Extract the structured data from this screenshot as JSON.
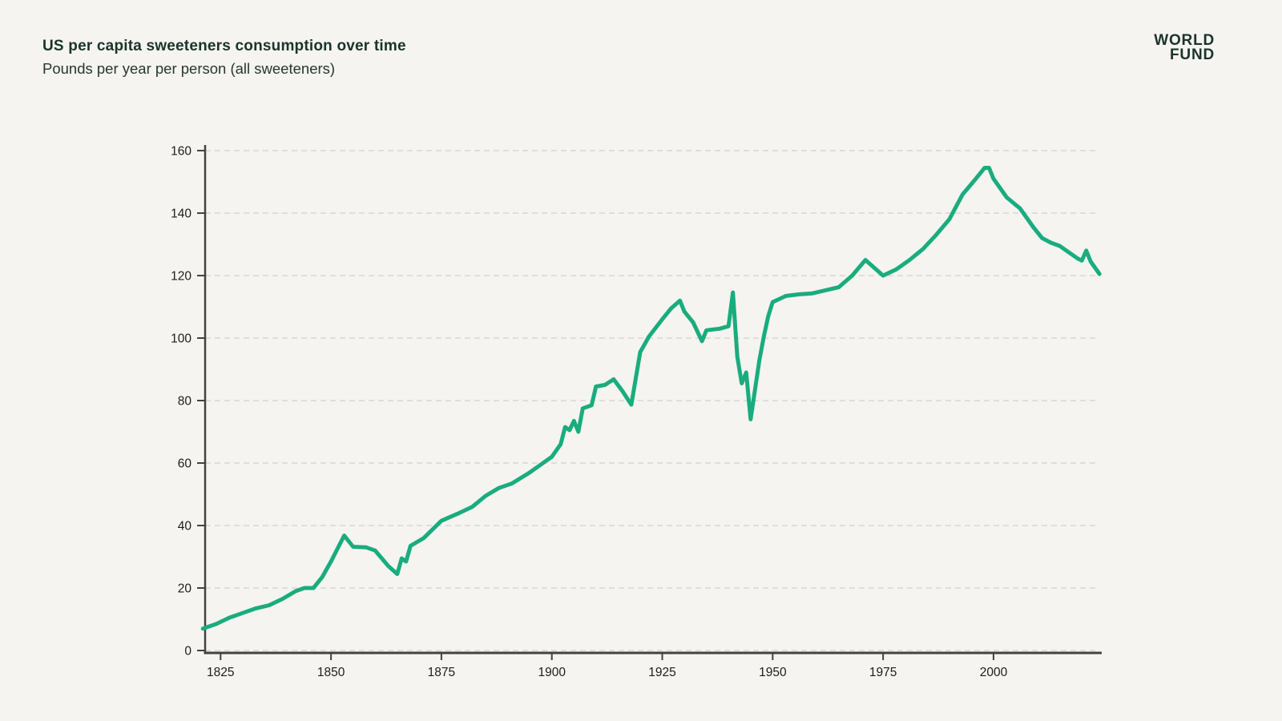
{
  "header": {
    "title": "US per capita sweeteners consumption over time",
    "subtitle": "Pounds per year per person (all sweeteners)"
  },
  "logo": {
    "line1": "WORLD",
    "line2": "FUND"
  },
  "colors": {
    "background": "#f5f4f0",
    "line": "#1aac7e",
    "axis": "#424242",
    "grid": "#d8d6d2",
    "tick_label": "#1c1c1c",
    "title_text": "#1b332c"
  },
  "chart_data": {
    "type": "line",
    "title": "US per capita sweeteners consumption over time",
    "subtitle": "Pounds per year per person (all sweeteners)",
    "xlabel": "",
    "ylabel": "",
    "xlim": [
      1821.5,
      2024.5
    ],
    "ylim": [
      0,
      160
    ],
    "x_ticks": [
      1825,
      1850,
      1875,
      1900,
      1925,
      1950,
      1975,
      2000
    ],
    "y_ticks": [
      0,
      20,
      40,
      60,
      80,
      100,
      120,
      140,
      160
    ],
    "grid": "horizontal-dashed",
    "legend": "none",
    "series": [
      {
        "name": "All sweeteners (lbs per person per year)",
        "points": [
          [
            1821,
            7
          ],
          [
            1824,
            8.5
          ],
          [
            1827,
            10.5
          ],
          [
            1830,
            12
          ],
          [
            1833,
            13.5
          ],
          [
            1836,
            14.5
          ],
          [
            1839,
            16.5
          ],
          [
            1842,
            19
          ],
          [
            1844,
            20
          ],
          [
            1846,
            20
          ],
          [
            1848,
            23.5
          ],
          [
            1850,
            28.5
          ],
          [
            1853,
            36.8
          ],
          [
            1855,
            33.2
          ],
          [
            1858,
            33
          ],
          [
            1860,
            32
          ],
          [
            1863,
            27
          ],
          [
            1865,
            24.5
          ],
          [
            1866,
            29.5
          ],
          [
            1867,
            28.5
          ],
          [
            1868,
            33.5
          ],
          [
            1871,
            36
          ],
          [
            1875,
            41.5
          ],
          [
            1879,
            44
          ],
          [
            1882,
            46
          ],
          [
            1885,
            49.5
          ],
          [
            1888,
            52
          ],
          [
            1891,
            53.5
          ],
          [
            1895,
            57
          ],
          [
            1898,
            60
          ],
          [
            1900,
            62
          ],
          [
            1902,
            66
          ],
          [
            1903,
            71.5
          ],
          [
            1904,
            70.5
          ],
          [
            1905,
            73.5
          ],
          [
            1906,
            70
          ],
          [
            1907,
            77.5
          ],
          [
            1909,
            78.5
          ],
          [
            1910,
            84.5
          ],
          [
            1912,
            85
          ],
          [
            1914,
            86.8
          ],
          [
            1916,
            83
          ],
          [
            1918,
            78.7
          ],
          [
            1920,
            95.5
          ],
          [
            1922,
            100.5
          ],
          [
            1925,
            106
          ],
          [
            1927,
            109.5
          ],
          [
            1929,
            112
          ],
          [
            1930,
            108.5
          ],
          [
            1932,
            105
          ],
          [
            1934,
            99
          ],
          [
            1935,
            102.5
          ],
          [
            1938,
            103
          ],
          [
            1940,
            103.8
          ],
          [
            1941,
            114.6
          ],
          [
            1942,
            94
          ],
          [
            1943,
            85.5
          ],
          [
            1944,
            89
          ],
          [
            1945,
            74
          ],
          [
            1947,
            93
          ],
          [
            1948,
            100.5
          ],
          [
            1949,
            107
          ],
          [
            1950,
            111.5
          ],
          [
            1953,
            113.5
          ],
          [
            1956,
            114
          ],
          [
            1959,
            114.3
          ],
          [
            1962,
            115.3
          ],
          [
            1965,
            116.3
          ],
          [
            1968,
            120
          ],
          [
            1971,
            125
          ],
          [
            1973,
            122.5
          ],
          [
            1975,
            120
          ],
          [
            1978,
            122
          ],
          [
            1981,
            125
          ],
          [
            1984,
            128.5
          ],
          [
            1987,
            133
          ],
          [
            1990,
            138
          ],
          [
            1993,
            146
          ],
          [
            1996,
            151
          ],
          [
            1998,
            154.5
          ],
          [
            1999,
            154.5
          ],
          [
            2000,
            151
          ],
          [
            2003,
            145
          ],
          [
            2006,
            141.5
          ],
          [
            2009,
            135.5
          ],
          [
            2011,
            132
          ],
          [
            2013,
            130.5
          ],
          [
            2015,
            129.5
          ],
          [
            2017,
            127.5
          ],
          [
            2019,
            125.5
          ],
          [
            2020,
            124.8
          ],
          [
            2021,
            128
          ],
          [
            2022,
            124.5
          ],
          [
            2024,
            120.5
          ]
        ]
      }
    ]
  }
}
